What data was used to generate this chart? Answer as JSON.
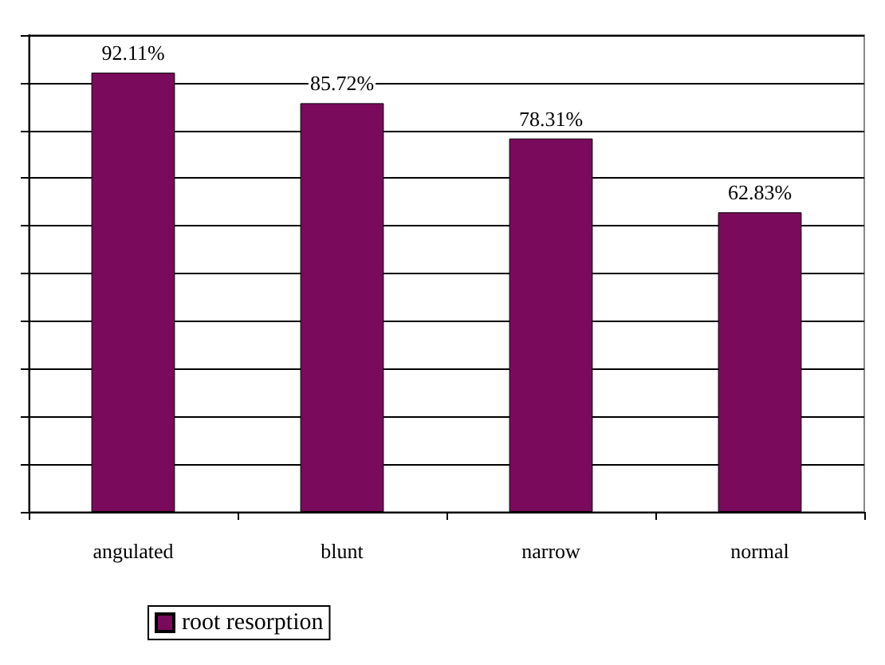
{
  "chart_data": {
    "type": "bar",
    "categories": [
      "angulated",
      "blunt",
      "narrow",
      "normal"
    ],
    "series": [
      {
        "name": "root resorption",
        "color": "#7a0a5c",
        "values": [
          92.11,
          85.72,
          78.31,
          62.83
        ],
        "value_labels": [
          "92.11%",
          "85.72%",
          "78.31%",
          "62.83%"
        ]
      }
    ],
    "ylim": [
      0,
      100
    ],
    "yticks": [
      {
        "value": 0,
        "label": null
      },
      {
        "value": 10,
        "label": null
      },
      {
        "value": 20,
        "label": null
      },
      {
        "value": 30,
        "label": null
      },
      {
        "value": 40,
        "label": null
      },
      {
        "value": 50,
        "label": null
      },
      {
        "value": 60,
        "label": null
      },
      {
        "value": 70,
        "label": null
      },
      {
        "value": 80,
        "label": null
      },
      {
        "value": 90,
        "label": null
      },
      {
        "value": 100,
        "label": null
      }
    ],
    "tick_labels": "x",
    "grid": "y",
    "legend": "bottom left"
  }
}
